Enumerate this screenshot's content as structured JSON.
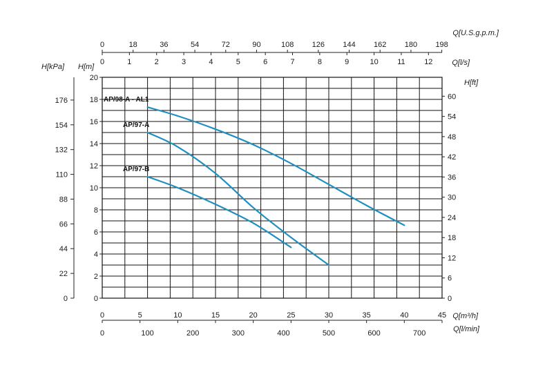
{
  "chart_data": {
    "type": "line",
    "units": {
      "head_m": "H[m]",
      "head_kpa": "H[kPa]",
      "head_ft": "H[ft]",
      "flow_m3h": "Q[m³/h]",
      "flow_lmin": "Q[l/min]",
      "flow_ls": "Q[l/s]",
      "flow_usgpm": "Q[U.S.g.p.m.]"
    },
    "grid": true,
    "curve_color": "#1f8fbf",
    "axes": {
      "x_m3h": {
        "range": [
          0,
          45
        ],
        "ticks": [
          0,
          5,
          10,
          15,
          20,
          25,
          30,
          35,
          40,
          45
        ]
      },
      "y_m": {
        "range": [
          0,
          20
        ],
        "ticks": [
          0,
          2,
          4,
          6,
          8,
          10,
          12,
          14,
          16,
          18,
          20
        ]
      },
      "y_kpa": {
        "ticks": [
          0,
          22,
          44,
          66,
          88,
          110,
          132,
          154,
          176
        ]
      },
      "y_ft": {
        "ticks": [
          0,
          6,
          12,
          18,
          24,
          30,
          36,
          42,
          48,
          54,
          60
        ]
      },
      "x_lmin": {
        "ticks": [
          0,
          100,
          200,
          300,
          400,
          500,
          600,
          700
        ]
      },
      "x_ls": {
        "ticks": [
          0,
          1,
          2,
          3,
          4,
          5,
          6,
          7,
          8,
          9,
          10,
          11,
          12
        ]
      },
      "x_usgpm": {
        "ticks": [
          0,
          18,
          36,
          54,
          72,
          90,
          108,
          126,
          144,
          162,
          180,
          198
        ]
      }
    },
    "series": [
      {
        "name": "AP/98-A - AL1",
        "x": [
          6,
          10,
          15,
          20,
          25,
          30,
          35,
          40
        ],
        "y": [
          17.3,
          16.5,
          15.3,
          13.9,
          12.2,
          10.3,
          8.4,
          6.6
        ]
      },
      {
        "name": "AP/97-A",
        "x": [
          6,
          10,
          15,
          20,
          25,
          30
        ],
        "y": [
          15.0,
          13.7,
          11.3,
          8.2,
          5.5,
          3.0
        ]
      },
      {
        "name": "AP/97-B",
        "x": [
          6,
          10,
          15,
          20,
          25
        ],
        "y": [
          11.0,
          10.0,
          8.5,
          6.8,
          4.6
        ]
      }
    ]
  }
}
